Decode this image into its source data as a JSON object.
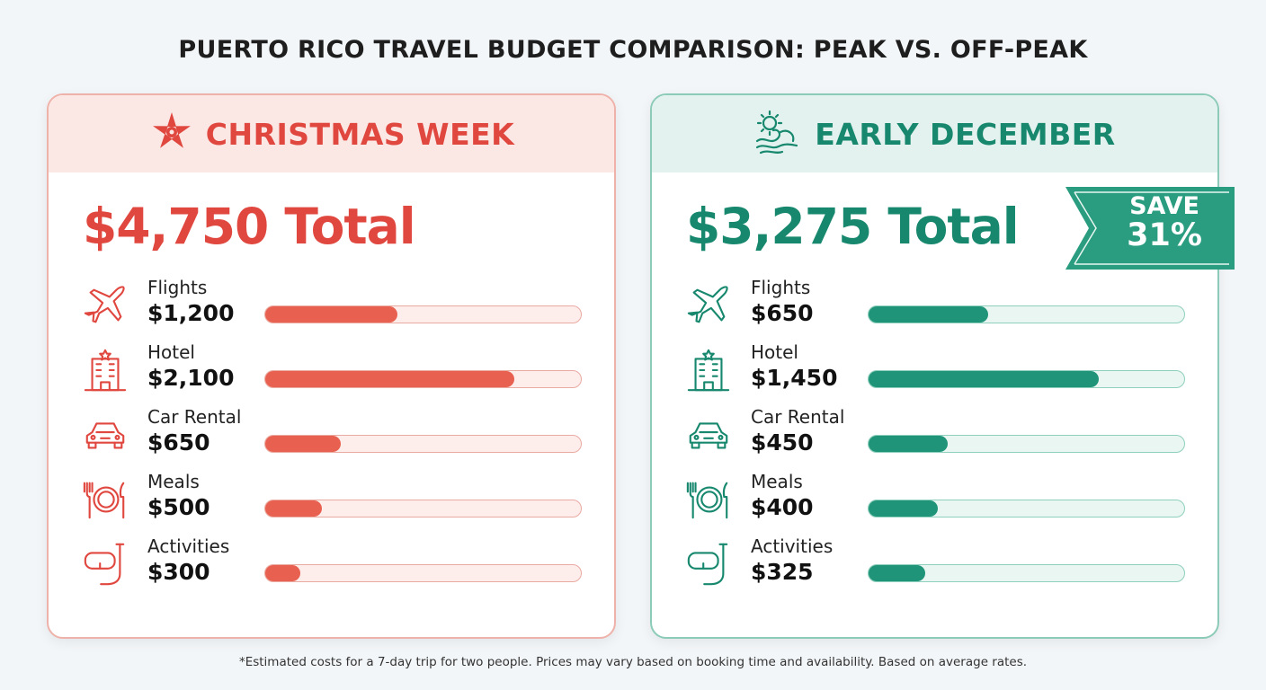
{
  "title": "PUERTO RICO TRAVEL BUDGET COMPARISON: PEAK VS. OFF-PEAK",
  "footnote": "*Estimated costs for a 7-day trip for two people. Prices may vary based on booking time and availability. Based on average rates.",
  "colors": {
    "peak": "#e0473f",
    "peak_bar": "#e8604f",
    "offpeak": "#17886e",
    "offpeak_bar": "#1f9478"
  },
  "panels": [
    {
      "heading": "CHRISTMAS WEEK",
      "heading_icon": "poinsettia-icon",
      "total": "$4,750 Total",
      "items": [
        {
          "label": "Flights",
          "value": "$1,200",
          "icon": "airplane-icon",
          "fill_pct": 42
        },
        {
          "label": "Hotel",
          "value": "$2,100",
          "icon": "hotel-icon",
          "fill_pct": 79
        },
        {
          "label": "Car Rental",
          "value": "$650",
          "icon": "car-icon",
          "fill_pct": 24
        },
        {
          "label": "Meals",
          "value": "$500",
          "icon": "meal-plate-icon",
          "fill_pct": 18
        },
        {
          "label": "Activities",
          "value": "$300",
          "icon": "snorkel-mask-icon",
          "fill_pct": 11
        }
      ]
    },
    {
      "heading": "EARLY DECEMBER",
      "heading_icon": "sun-waves-icon",
      "total": "$3,275 Total",
      "badge": {
        "line1": "SAVE",
        "line2": "31%"
      },
      "items": [
        {
          "label": "Flights",
          "value": "$650",
          "icon": "airplane-icon",
          "fill_pct": 38
        },
        {
          "label": "Hotel",
          "value": "$1,450",
          "icon": "hotel-icon",
          "fill_pct": 73
        },
        {
          "label": "Car Rental",
          "value": "$450",
          "icon": "car-icon",
          "fill_pct": 25
        },
        {
          "label": "Meals",
          "value": "$400",
          "icon": "meal-plate-icon",
          "fill_pct": 22
        },
        {
          "label": "Activities",
          "value": "$325",
          "icon": "snorkel-mask-icon",
          "fill_pct": 18
        }
      ]
    }
  ],
  "chart_data": [
    {
      "type": "bar",
      "title": "CHRISTMAS WEEK",
      "orientation": "horizontal",
      "categories": [
        "Flights",
        "Hotel",
        "Car Rental",
        "Meals",
        "Activities"
      ],
      "values": [
        1200,
        2100,
        650,
        500,
        300
      ],
      "total": 4750,
      "unit": "USD"
    },
    {
      "type": "bar",
      "title": "EARLY DECEMBER",
      "orientation": "horizontal",
      "categories": [
        "Flights",
        "Hotel",
        "Car Rental",
        "Meals",
        "Activities"
      ],
      "values": [
        650,
        1450,
        450,
        400,
        325
      ],
      "total": 3275,
      "unit": "USD"
    }
  ]
}
